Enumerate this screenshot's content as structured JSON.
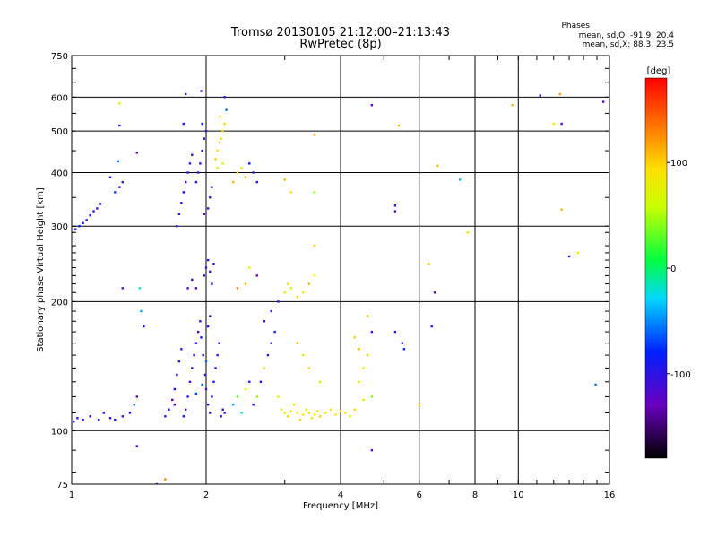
{
  "chart_data": {
    "type": "scatter",
    "title": "Tromsø 20130105 21:12:00–21:13:43",
    "subtitle": "RwPretec (8p)",
    "xlabel": "Frequency [MHz]",
    "ylabel": "Stationary phase Virtual Height [km]",
    "x_scale": "log",
    "y_scale": "log",
    "xlim": [
      1,
      16
    ],
    "ylim": [
      75,
      750
    ],
    "x_ticks": [
      1,
      2,
      4,
      6,
      8,
      10,
      16
    ],
    "x_tick_labels": [
      "1",
      "2",
      "4",
      "6",
      "8",
      "10",
      "16"
    ],
    "y_ticks": [
      75,
      100,
      200,
      300,
      400,
      500,
      600,
      750
    ],
    "y_tick_labels": [
      "75",
      "100",
      "200",
      "300",
      "400",
      "500",
      "600",
      "750"
    ],
    "grid": true,
    "stats": {
      "heading": "Phases",
      "line_o": "mean, sd,O: -91.9, 20.4",
      "line_x": "mean, sd,X:  88.3, 23.5"
    },
    "colorbar": {
      "label": "[deg]",
      "range": [
        -180,
        180
      ],
      "ticks": [
        100,
        0,
        -100
      ],
      "tick_labels": [
        "100",
        "0",
        "-100"
      ]
    },
    "points": [
      [
        1.01,
        105,
        -110
      ],
      [
        1.03,
        107,
        -100
      ],
      [
        1.06,
        106,
        -105
      ],
      [
        1.1,
        108,
        -120
      ],
      [
        1.15,
        106,
        -95
      ],
      [
        1.18,
        110,
        -110
      ],
      [
        1.22,
        107,
        -100
      ],
      [
        1.25,
        106,
        -90
      ],
      [
        1.3,
        108,
        -115
      ],
      [
        1.35,
        110,
        -100
      ],
      [
        1.38,
        115,
        -60
      ],
      [
        1.4,
        120,
        -130
      ],
      [
        1.02,
        295,
        -120
      ],
      [
        1.04,
        300,
        -80
      ],
      [
        1.06,
        305,
        -100
      ],
      [
        1.08,
        310,
        -110
      ],
      [
        1.1,
        318,
        -90
      ],
      [
        1.12,
        325,
        -100
      ],
      [
        1.14,
        330,
        -120
      ],
      [
        1.16,
        338,
        -100
      ],
      [
        1.25,
        360,
        -70
      ],
      [
        1.28,
        370,
        -100
      ],
      [
        1.3,
        380,
        -110
      ],
      [
        1.22,
        390,
        -90
      ],
      [
        1.27,
        425,
        -60
      ],
      [
        1.28,
        515,
        -110
      ],
      [
        1.28,
        580,
        90
      ],
      [
        1.3,
        215,
        -120
      ],
      [
        1.4,
        445,
        -130
      ],
      [
        1.42,
        215,
        -20
      ],
      [
        1.43,
        190,
        -40
      ],
      [
        1.45,
        175,
        -100
      ],
      [
        1.4,
        92,
        -120
      ],
      [
        1.55,
        75,
        -100
      ],
      [
        1.62,
        77,
        130
      ],
      [
        1.62,
        108,
        -110
      ],
      [
        1.65,
        112,
        -100
      ],
      [
        1.68,
        118,
        -120
      ],
      [
        1.7,
        125,
        -90
      ],
      [
        1.72,
        135,
        -105
      ],
      [
        1.74,
        145,
        -110
      ],
      [
        1.76,
        155,
        -100
      ],
      [
        1.7,
        115,
        -120
      ],
      [
        1.78,
        108,
        -100
      ],
      [
        1.8,
        112,
        -110
      ],
      [
        1.82,
        120,
        -95
      ],
      [
        1.84,
        130,
        -120
      ],
      [
        1.86,
        140,
        -100
      ],
      [
        1.88,
        150,
        -110
      ],
      [
        1.9,
        160,
        -100
      ],
      [
        1.92,
        170,
        -115
      ],
      [
        1.94,
        180,
        -100
      ],
      [
        1.95,
        165,
        -80
      ],
      [
        1.97,
        150,
        -110
      ],
      [
        1.99,
        135,
        -100
      ],
      [
        2.0,
        125,
        -120
      ],
      [
        2.02,
        115,
        -100
      ],
      [
        2.04,
        110,
        -110
      ],
      [
        2.06,
        120,
        -100
      ],
      [
        2.08,
        130,
        -90
      ],
      [
        2.1,
        140,
        -110
      ],
      [
        2.12,
        150,
        -100
      ],
      [
        2.14,
        160,
        -110
      ],
      [
        2.0,
        145,
        -60
      ],
      [
        2.02,
        175,
        -100
      ],
      [
        2.04,
        185,
        -110
      ],
      [
        1.9,
        122,
        -70
      ],
      [
        1.96,
        128,
        -60
      ],
      [
        2.16,
        108,
        -100
      ],
      [
        2.18,
        112,
        -110
      ],
      [
        1.72,
        300,
        -110
      ],
      [
        1.74,
        320,
        -100
      ],
      [
        1.76,
        340,
        -110
      ],
      [
        1.78,
        360,
        -95
      ],
      [
        1.8,
        380,
        -110
      ],
      [
        1.82,
        400,
        -100
      ],
      [
        1.84,
        420,
        -110
      ],
      [
        1.86,
        440,
        -100
      ],
      [
        1.78,
        520,
        -90
      ],
      [
        1.8,
        610,
        -110
      ],
      [
        1.9,
        380,
        -100
      ],
      [
        1.92,
        400,
        -110
      ],
      [
        1.94,
        420,
        -100
      ],
      [
        1.96,
        450,
        -110
      ],
      [
        1.98,
        480,
        -100
      ],
      [
        2.0,
        500,
        -110
      ],
      [
        1.95,
        620,
        -120
      ],
      [
        2.02,
        330,
        -100
      ],
      [
        2.04,
        350,
        -110
      ],
      [
        2.06,
        370,
        -100
      ],
      [
        1.98,
        320,
        -120
      ],
      [
        1.96,
        520,
        -80
      ],
      [
        1.82,
        215,
        -110
      ],
      [
        1.86,
        225,
        -100
      ],
      [
        1.9,
        215,
        -120
      ],
      [
        1.98,
        230,
        -100
      ],
      [
        2.0,
        240,
        -110
      ],
      [
        2.02,
        250,
        -100
      ],
      [
        2.04,
        235,
        -110
      ],
      [
        2.06,
        220,
        -100
      ],
      [
        2.08,
        245,
        -110
      ],
      [
        2.1,
        430,
        100
      ],
      [
        2.12,
        450,
        95
      ],
      [
        2.14,
        470,
        100
      ],
      [
        2.16,
        480,
        90
      ],
      [
        2.18,
        500,
        100
      ],
      [
        2.2,
        520,
        95
      ],
      [
        2.15,
        540,
        100
      ],
      [
        2.12,
        410,
        80
      ],
      [
        2.2,
        600,
        -100
      ],
      [
        2.22,
        560,
        -60
      ],
      [
        2.18,
        420,
        70
      ],
      [
        2.3,
        380,
        110
      ],
      [
        2.35,
        400,
        100
      ],
      [
        2.4,
        410,
        95
      ],
      [
        2.45,
        390,
        105
      ],
      [
        2.5,
        420,
        -80
      ],
      [
        2.55,
        400,
        -110
      ],
      [
        2.6,
        380,
        -100
      ],
      [
        2.6,
        230,
        -130
      ],
      [
        2.45,
        220,
        110
      ],
      [
        2.35,
        215,
        130
      ],
      [
        2.5,
        240,
        90
      ],
      [
        2.2,
        110,
        -100
      ],
      [
        2.3,
        115,
        -40
      ],
      [
        2.35,
        120,
        30
      ],
      [
        2.4,
        110,
        -20
      ],
      [
        2.45,
        125,
        60
      ],
      [
        2.5,
        130,
        -100
      ],
      [
        2.55,
        115,
        -110
      ],
      [
        2.6,
        120,
        40
      ],
      [
        2.65,
        130,
        -100
      ],
      [
        2.7,
        140,
        90
      ],
      [
        2.75,
        150,
        -110
      ],
      [
        2.8,
        160,
        -100
      ],
      [
        2.85,
        170,
        -90
      ],
      [
        2.9,
        120,
        70
      ],
      [
        2.95,
        112,
        80
      ],
      [
        3.0,
        110,
        90
      ],
      [
        3.05,
        108,
        100
      ],
      [
        3.1,
        111,
        80
      ],
      [
        3.15,
        115,
        95
      ],
      [
        3.2,
        110,
        85
      ],
      [
        3.25,
        106,
        100
      ],
      [
        3.3,
        109,
        90
      ],
      [
        3.35,
        112,
        80
      ],
      [
        3.4,
        110,
        95
      ],
      [
        3.45,
        107,
        85
      ],
      [
        3.5,
        109,
        90
      ],
      [
        3.55,
        111,
        80
      ],
      [
        3.6,
        108,
        100
      ],
      [
        3.7,
        110,
        90
      ],
      [
        3.8,
        112,
        80
      ],
      [
        3.9,
        109,
        95
      ],
      [
        4.0,
        111,
        85
      ],
      [
        4.1,
        110,
        90
      ],
      [
        4.2,
        108,
        80
      ],
      [
        4.3,
        112,
        100
      ],
      [
        2.7,
        180,
        -110
      ],
      [
        2.8,
        190,
        -100
      ],
      [
        2.9,
        200,
        -90
      ],
      [
        3.0,
        210,
        80
      ],
      [
        3.05,
        220,
        90
      ],
      [
        3.1,
        215,
        60
      ],
      [
        3.2,
        205,
        100
      ],
      [
        3.3,
        210,
        90
      ],
      [
        3.4,
        220,
        110
      ],
      [
        3.5,
        230,
        80
      ],
      [
        3.5,
        270,
        110
      ],
      [
        3.2,
        160,
        110
      ],
      [
        3.3,
        150,
        80
      ],
      [
        3.4,
        140,
        100
      ],
      [
        3.6,
        130,
        70
      ],
      [
        3.0,
        385,
        110
      ],
      [
        3.1,
        360,
        90
      ],
      [
        3.5,
        360,
        40
      ],
      [
        3.5,
        490,
        120
      ],
      [
        4.3,
        165,
        100
      ],
      [
        4.4,
        155,
        110
      ],
      [
        4.5,
        140,
        90
      ],
      [
        4.6,
        150,
        100
      ],
      [
        4.4,
        130,
        80
      ],
      [
        4.7,
        170,
        -110
      ],
      [
        4.6,
        185,
        100
      ],
      [
        4.7,
        120,
        40
      ],
      [
        4.5,
        118,
        80
      ],
      [
        4.7,
        575,
        -120
      ],
      [
        4.7,
        90,
        -110
      ],
      [
        5.4,
        515,
        110
      ],
      [
        5.3,
        335,
        -100
      ],
      [
        5.3,
        325,
        -120
      ],
      [
        5.3,
        170,
        -110
      ],
      [
        5.5,
        160,
        -100
      ],
      [
        5.55,
        155,
        -80
      ],
      [
        6.0,
        115,
        90
      ],
      [
        6.3,
        245,
        110
      ],
      [
        6.4,
        175,
        -100
      ],
      [
        6.5,
        210,
        -110
      ],
      [
        6.6,
        415,
        110
      ],
      [
        7.4,
        385,
        -40
      ],
      [
        7.7,
        290,
        90
      ],
      [
        9.7,
        575,
        110
      ],
      [
        11.2,
        605,
        -110
      ],
      [
        12.0,
        520,
        90
      ],
      [
        12.4,
        610,
        120
      ],
      [
        12.5,
        520,
        -120
      ],
      [
        12.5,
        328,
        110
      ],
      [
        13.0,
        255,
        -110
      ],
      [
        13.6,
        260,
        90
      ],
      [
        14.9,
        128,
        -60
      ],
      [
        15.5,
        585,
        -120
      ]
    ]
  }
}
